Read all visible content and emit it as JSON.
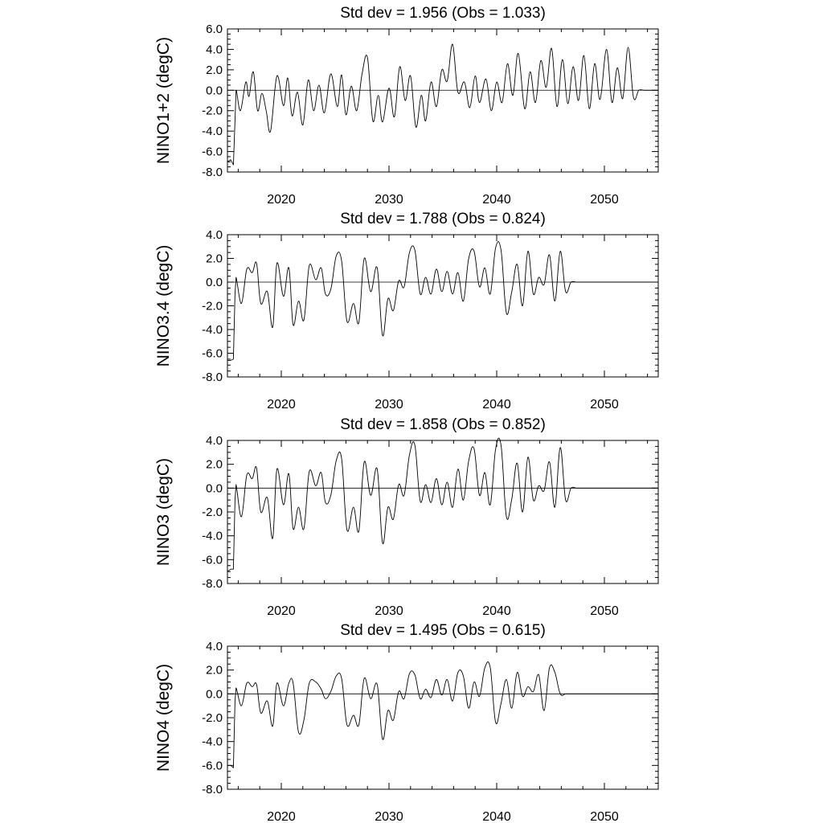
{
  "chart_data": [
    {
      "type": "line",
      "title": "Std dev = 1.956 (Obs = 1.033)",
      "ylabel": "NINO1+2 (degC)",
      "xlabel": "",
      "ylim": [
        -8,
        6
      ],
      "xlim": [
        2015,
        2055
      ],
      "yticks": [
        "-8.0",
        "-6.0",
        "-4.0",
        "-2.0",
        "0.0",
        "2.0",
        "4.0",
        "6.0"
      ],
      "xticks": [
        "2020",
        "2030",
        "2040",
        "2050"
      ],
      "x": [
        2015.0,
        2015.3,
        2015.55,
        2015.7,
        2015.8,
        2016.2,
        2016.7,
        2017.0,
        2017.4,
        2017.8,
        2018.2,
        2018.6,
        2019.0,
        2019.6,
        2020.2,
        2020.6,
        2021.0,
        2021.5,
        2022.0,
        2022.5,
        2023.0,
        2023.5,
        2024.0,
        2024.6,
        2025.2,
        2025.6,
        2026.0,
        2026.5,
        2027.0,
        2027.5,
        2028.0,
        2028.5,
        2029.0,
        2029.4,
        2030.0,
        2030.5,
        2031.0,
        2031.5,
        2032.0,
        2032.5,
        2033.0,
        2033.4,
        2033.9,
        2034.4,
        2034.9,
        2035.4,
        2035.9,
        2036.4,
        2037.0,
        2037.5,
        2038.0,
        2038.4,
        2039.0,
        2039.5,
        2040.0,
        2040.5,
        2041.0,
        2041.5,
        2042.0,
        2042.6,
        2043.1,
        2043.6,
        2044.1,
        2044.6,
        2045.1,
        2045.6,
        2046.1,
        2046.6,
        2047.1,
        2047.6,
        2048.1,
        2048.6,
        2049.1,
        2049.6,
        2050.2,
        2050.7,
        2051.2,
        2051.7,
        2052.2,
        2052.7,
        2053.2,
        2053.7,
        2054.2,
        2054.7,
        2054.9
      ],
      "values": [
        -7.0,
        -6.8,
        -7.3,
        -3.0,
        0.0,
        -2.0,
        0.8,
        -0.6,
        1.8,
        -2.0,
        -0.3,
        -2.0,
        -4.0,
        1.4,
        -1.5,
        1.2,
        -2.5,
        -0.2,
        -3.4,
        1.0,
        -2.0,
        0.5,
        -2.2,
        1.6,
        -1.6,
        1.5,
        -2.4,
        0.4,
        -2.0,
        1.6,
        3.2,
        -3.0,
        -0.5,
        -3.1,
        0.2,
        -2.6,
        2.3,
        -1.0,
        1.4,
        -3.6,
        -0.5,
        -3.0,
        0.8,
        -1.6,
        2.0,
        0.9,
        4.5,
        -0.2,
        0.8,
        -1.7,
        1.4,
        -1.2,
        1.1,
        -2.0,
        0.8,
        -1.2,
        2.6,
        -0.5,
        3.6,
        -1.8,
        1.8,
        -1.2,
        2.9,
        0.3,
        4.1,
        -1.6,
        3.0,
        -1.3,
        2.3,
        -1.0,
        3.4,
        -1.8,
        2.6,
        -0.9,
        4.0,
        -1.2,
        2.2,
        -0.8,
        4.2,
        -0.7,
        0.0,
        0.0,
        0.0,
        0.0,
        0.0
      ]
    },
    {
      "type": "line",
      "title": "Std dev = 1.788 (Obs = 0.824)",
      "ylabel": "NINO3.4 (degC)",
      "xlabel": "",
      "ylim": [
        -8,
        4
      ],
      "xlim": [
        2015,
        2055
      ],
      "yticks": [
        "-8.0",
        "-6.0",
        "-4.0",
        "-2.0",
        "0.0",
        "2.0",
        "4.0"
      ],
      "xticks": [
        "2020",
        "2030",
        "2040",
        "2050"
      ],
      "x": [
        2015.0,
        2015.3,
        2015.55,
        2015.7,
        2015.8,
        2016.3,
        2016.8,
        2017.3,
        2017.7,
        2018.1,
        2018.7,
        2019.2,
        2019.6,
        2020.2,
        2020.7,
        2021.1,
        2021.6,
        2022.1,
        2022.6,
        2023.2,
        2023.7,
        2024.1,
        2024.6,
        2025.1,
        2025.6,
        2026.1,
        2026.7,
        2027.2,
        2027.7,
        2028.3,
        2028.9,
        2029.4,
        2029.9,
        2030.4,
        2030.9,
        2031.4,
        2031.9,
        2032.4,
        2032.9,
        2033.4,
        2033.9,
        2034.4,
        2034.9,
        2035.4,
        2035.9,
        2036.4,
        2036.9,
        2037.4,
        2037.9,
        2038.4,
        2038.9,
        2039.4,
        2039.9,
        2040.4,
        2040.9,
        2041.4,
        2041.9,
        2042.4,
        2042.9,
        2043.4,
        2043.9,
        2044.4,
        2044.9,
        2045.4,
        2045.9,
        2046.4,
        2046.9,
        2047.4,
        2047.9,
        2048.4,
        2048.9,
        2049.4,
        2049.9,
        2050.4,
        2050.9,
        2051.4,
        2051.9,
        2052.4,
        2052.9,
        2053.4,
        2053.9,
        2054.4,
        2054.9
      ],
      "values": [
        -6.6,
        -6.6,
        -6.5,
        -1.0,
        0.4,
        -1.8,
        1.1,
        0.8,
        1.6,
        -1.8,
        -0.8,
        -3.8,
        1.6,
        -1.2,
        1.2,
        -3.6,
        -1.6,
        -3.2,
        1.4,
        0.2,
        1.2,
        -1.0,
        -0.6,
        2.2,
        1.8,
        -3.3,
        -1.8,
        -3.4,
        2.0,
        -0.8,
        1.2,
        -4.5,
        -1.4,
        -2.4,
        0.1,
        -0.4,
        2.5,
        2.7,
        -1.0,
        0.4,
        -1.0,
        1.1,
        -0.8,
        0.9,
        -1.0,
        0.8,
        -1.6,
        2.0,
        2.6,
        -0.4,
        1.2,
        -1.0,
        2.9,
        2.7,
        -2.6,
        -0.8,
        1.5,
        -2.0,
        2.6,
        -1.0,
        0.4,
        -0.2,
        2.3,
        -1.6,
        2.6,
        -0.8,
        0.0,
        0.0,
        0.0,
        0.0,
        0.0,
        0.0,
        0.0,
        0.0,
        0.0,
        0.0,
        0.0,
        0.0,
        0.0,
        0.0,
        0.0,
        0.0,
        0.0
      ]
    },
    {
      "type": "line",
      "title": "Std dev = 1.858 (Obs = 0.852)",
      "ylabel": "NINO3 (degC)",
      "xlabel": "",
      "ylim": [
        -8,
        4
      ],
      "xlim": [
        2015,
        2055
      ],
      "yticks": [
        "-8.0",
        "-6.0",
        "-4.0",
        "-2.0",
        "0.0",
        "2.0",
        "4.0"
      ],
      "xticks": [
        "2020",
        "2030",
        "2040",
        "2050"
      ],
      "x": [
        2015.0,
        2015.3,
        2015.55,
        2015.7,
        2015.8,
        2016.3,
        2016.8,
        2017.3,
        2017.7,
        2018.1,
        2018.7,
        2019.2,
        2019.6,
        2020.2,
        2020.7,
        2021.1,
        2021.6,
        2022.1,
        2022.6,
        2023.2,
        2023.7,
        2024.1,
        2024.6,
        2025.1,
        2025.6,
        2026.1,
        2026.7,
        2027.2,
        2027.7,
        2028.3,
        2028.9,
        2029.4,
        2029.9,
        2030.4,
        2030.9,
        2031.4,
        2031.9,
        2032.4,
        2032.9,
        2033.4,
        2033.9,
        2034.4,
        2034.9,
        2035.4,
        2035.9,
        2036.4,
        2036.9,
        2037.4,
        2037.9,
        2038.4,
        2038.9,
        2039.4,
        2039.9,
        2040.4,
        2040.9,
        2041.4,
        2041.9,
        2042.4,
        2042.9,
        2043.4,
        2043.9,
        2044.4,
        2044.9,
        2045.4,
        2045.9,
        2046.4,
        2046.9,
        2047.4,
        2047.9,
        2048.4,
        2048.9,
        2049.4,
        2049.9,
        2050.4,
        2050.9,
        2051.4,
        2051.9,
        2052.4,
        2052.9,
        2053.4,
        2053.9,
        2054.4,
        2054.9
      ],
      "values": [
        -7.0,
        -6.8,
        -6.8,
        -1.0,
        0.3,
        -2.4,
        1.1,
        0.8,
        1.7,
        -2.0,
        -0.8,
        -4.2,
        1.6,
        -1.4,
        1.2,
        -3.4,
        -1.6,
        -3.4,
        1.4,
        0.2,
        1.3,
        -1.2,
        -0.6,
        2.3,
        2.5,
        -3.5,
        -1.6,
        -3.6,
        2.2,
        -0.6,
        1.6,
        -4.6,
        -1.6,
        -2.6,
        0.3,
        -0.6,
        2.8,
        3.6,
        -1.1,
        0.3,
        -1.2,
        0.8,
        -1.4,
        0.5,
        -1.6,
        1.6,
        -1.0,
        2.3,
        3.3,
        -0.6,
        1.3,
        -1.4,
        3.3,
        3.6,
        -2.4,
        -0.9,
        2.1,
        -2.0,
        2.6,
        -1.0,
        0.2,
        -0.2,
        2.2,
        -1.6,
        3.4,
        -1.0,
        0.0,
        0.0,
        0.0,
        0.0,
        0.0,
        0.0,
        0.0,
        0.0,
        0.0,
        0.0,
        0.0,
        0.0,
        0.0,
        0.0,
        0.0,
        0.0,
        0.0
      ]
    },
    {
      "type": "line",
      "title": "Std dev = 1.495 (Obs = 0.615)",
      "ylabel": "NINO4 (degC)",
      "xlabel": "",
      "ylim": [
        -8,
        4
      ],
      "xlim": [
        2015,
        2055
      ],
      "yticks": [
        "-8.0",
        "-6.0",
        "-4.0",
        "-2.0",
        "0.0",
        "2.0",
        "4.0"
      ],
      "xticks": [
        "2020",
        "2030",
        "2040",
        "2050"
      ],
      "x": [
        2015.0,
        2015.3,
        2015.55,
        2015.7,
        2015.8,
        2016.3,
        2016.8,
        2017.3,
        2017.7,
        2018.1,
        2018.7,
        2019.2,
        2019.6,
        2020.2,
        2020.7,
        2021.1,
        2021.6,
        2022.1,
        2022.6,
        2023.2,
        2023.7,
        2024.1,
        2024.6,
        2025.1,
        2025.6,
        2026.1,
        2026.7,
        2027.2,
        2027.7,
        2028.3,
        2028.9,
        2029.4,
        2029.9,
        2030.4,
        2030.9,
        2031.4,
        2031.9,
        2032.4,
        2032.9,
        2033.4,
        2033.9,
        2034.4,
        2034.9,
        2035.4,
        2035.9,
        2036.4,
        2036.9,
        2037.4,
        2037.9,
        2038.4,
        2038.9,
        2039.4,
        2039.9,
        2040.4,
        2040.9,
        2041.4,
        2041.9,
        2042.4,
        2042.9,
        2043.4,
        2043.9,
        2044.4,
        2044.9,
        2045.4,
        2045.9,
        2046.4,
        2046.9,
        2047.4,
        2047.9,
        2048.4,
        2048.9,
        2049.4,
        2049.9,
        2050.4,
        2050.9,
        2051.4,
        2051.9,
        2052.4,
        2052.9,
        2053.4,
        2053.9,
        2054.4,
        2054.9
      ],
      "values": [
        -6.0,
        -6.0,
        -6.2,
        -0.6,
        0.5,
        -1.0,
        0.9,
        0.6,
        0.8,
        -1.6,
        -0.6,
        -2.7,
        0.9,
        -1.0,
        0.9,
        0.9,
        -3.2,
        -2.2,
        0.9,
        1.0,
        0.4,
        -0.4,
        0.2,
        1.5,
        1.3,
        -2.6,
        -1.8,
        -2.6,
        1.3,
        -0.4,
        0.8,
        -3.8,
        -1.4,
        -2.2,
        0.2,
        -0.4,
        1.7,
        1.6,
        -0.4,
        0.4,
        -0.3,
        1.2,
        -0.1,
        1.2,
        -0.6,
        1.8,
        1.5,
        -1.2,
        1.0,
        -0.2,
        2.2,
        2.2,
        -2.4,
        -0.8,
        1.2,
        -1.2,
        1.8,
        -0.2,
        0.6,
        0.2,
        1.6,
        -1.4,
        2.2,
        1.8,
        0.0,
        0.0,
        0.0,
        0.0,
        0.0,
        0.0,
        0.0,
        0.0,
        0.0,
        0.0,
        0.0,
        0.0,
        0.0,
        0.0,
        0.0,
        0.0,
        0.0,
        0.0,
        0.0
      ]
    }
  ]
}
